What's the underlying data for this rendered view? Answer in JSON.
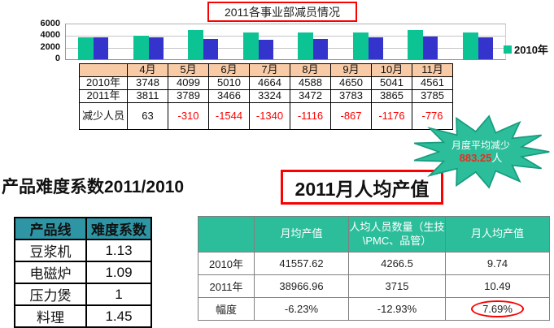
{
  "chart_data": {
    "type": "bar",
    "title": "2011各事业部减员情况",
    "categories": [
      "4月",
      "5月",
      "6月",
      "7月",
      "8月",
      "9月",
      "10月",
      "11月"
    ],
    "series": [
      {
        "name": "2010年",
        "color": "#0cc493",
        "values": [
          3748,
          4099,
          5010,
          4664,
          4588,
          4650,
          5041,
          4561
        ]
      },
      {
        "name": "2011年",
        "color": "#3433cb",
        "values": [
          3811,
          3789,
          3466,
          3324,
          3472,
          3783,
          3865,
          3785
        ]
      }
    ],
    "xlabel": "",
    "ylabel": "",
    "ylim": [
      0,
      6000
    ],
    "yticks": [
      6000,
      4000,
      2000,
      0
    ],
    "grid": true,
    "legend_position": "right",
    "legend_visible": [
      "2010年"
    ]
  },
  "reduction_table": {
    "col_header": [
      "",
      "4月",
      "5月",
      "6月",
      "7月",
      "8月",
      "9月",
      "10月",
      "11月"
    ],
    "rows": [
      {
        "label": "2010年",
        "values": [
          "3748",
          "4099",
          "5010",
          "4664",
          "4588",
          "4650",
          "5041",
          "4561"
        ]
      },
      {
        "label": "2011年",
        "values": [
          "3811",
          "3789",
          "3466",
          "3324",
          "3472",
          "3783",
          "3865",
          "3785"
        ]
      },
      {
        "label": "减少人员",
        "values": [
          "63",
          "-310",
          "-1544",
          "-1340",
          "-1116",
          "-867",
          "-1176",
          "-776"
        ]
      }
    ]
  },
  "starburst": {
    "line1": "月度平均减少",
    "value": "883.25",
    "unit": "人"
  },
  "difficulty_section": {
    "title": "产品难度系数2011/2010",
    "table": {
      "headers": [
        "产品线",
        "难度系数"
      ],
      "rows": [
        [
          "豆浆机",
          "1.13"
        ],
        [
          "电磁炉",
          "1.09"
        ],
        [
          "压力煲",
          "1"
        ],
        [
          "料理",
          "1.45"
        ]
      ]
    }
  },
  "output_section": {
    "title": "2011月人均产值",
    "table": {
      "headers": [
        "",
        "月均产值",
        "人均人员数量（生技\\PMC、品管）",
        "月人均产值"
      ],
      "rows": [
        [
          "2010年",
          "41557.62",
          "4266.5",
          "9.74"
        ],
        [
          "2011年",
          "38966.96",
          "3715",
          "10.49"
        ],
        [
          "幅度",
          "-6.23%",
          "-12.93%",
          "7.69%"
        ]
      ],
      "circled": {
        "row": 2,
        "col": 3
      }
    }
  },
  "colors": {
    "chart_green": "#0cc493",
    "chart_blue": "#3433cb",
    "month_header_peach": "#f8cba6",
    "teal_header": "#2e95a5",
    "green_header": "#2cbe9b",
    "starburst_fill": "#2cbe9b",
    "starburst_stroke": "#169c7e",
    "accent_red": "#fb0000"
  }
}
